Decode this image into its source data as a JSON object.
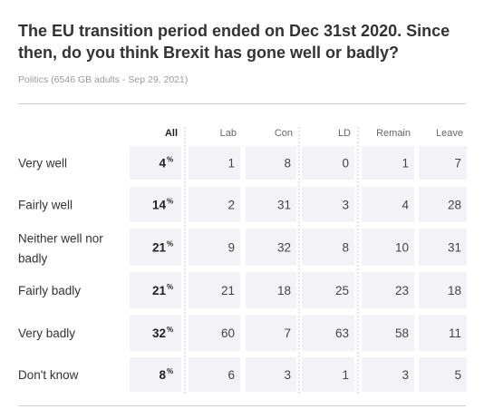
{
  "title": "The EU transition period ended on Dec 31st 2020. Since then, do you think Brexit has gone well or badly?",
  "meta": "Politics (6546 GB adults - Sep 29, 2021)",
  "colors": {
    "shade": "#f3f3f7",
    "text": "#333333",
    "muted": "#9a9a9a",
    "rule": "#cfcfcf"
  },
  "chart_data": {
    "type": "table",
    "columns": [
      "All",
      "Lab",
      "Con",
      "LD",
      "Remain",
      "Leave"
    ],
    "rows": [
      {
        "label": "Very well",
        "values": [
          4,
          1,
          8,
          0,
          1,
          7
        ]
      },
      {
        "label": "Fairly well",
        "values": [
          14,
          2,
          31,
          3,
          4,
          28
        ]
      },
      {
        "label": "Neither well nor badly",
        "values": [
          21,
          9,
          32,
          8,
          10,
          31
        ]
      },
      {
        "label": "Fairly badly",
        "values": [
          21,
          21,
          18,
          25,
          23,
          18
        ]
      },
      {
        "label": "Very badly",
        "values": [
          32,
          60,
          7,
          63,
          58,
          11
        ]
      },
      {
        "label": "Don't know",
        "values": [
          8,
          6,
          3,
          1,
          3,
          5
        ]
      }
    ],
    "unit": "%"
  }
}
